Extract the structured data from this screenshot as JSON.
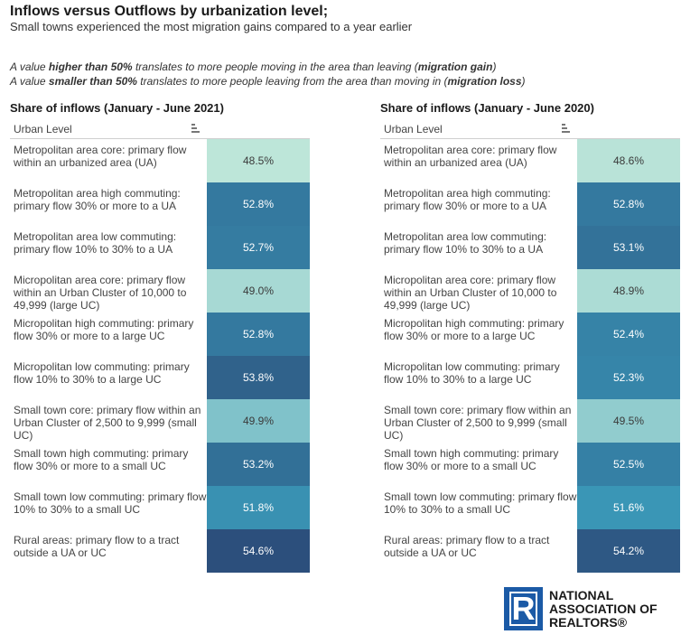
{
  "header": {
    "title": "Inflows versus Outflows by urbanization level;",
    "subtitle": "Small towns experienced the most migration gains compared to a year earlier"
  },
  "notes": {
    "line1": {
      "pre": "A value ",
      "bold": "higher than 50%",
      "mid": " translates to more people moving in the area than leaving (",
      "bold2": "migration gain",
      "post": ")"
    },
    "line2": {
      "pre": "A value ",
      "bold": "smaller than 50%",
      "mid": " translates to more people leaving from the area than moving in (",
      "bold2": "migration loss",
      "post": ")"
    }
  },
  "chart_data": {
    "type": "table",
    "column_header": "Urban Level",
    "categories": [
      "Metropolitan area core: primary flow within an urbanized area (UA)",
      "Metropolitan area high commuting: primary flow 30% or more to a UA",
      "Metropolitan area low commuting: primary flow 10% to 30% to a UA",
      "Micropolitan area core: primary flow within an Urban Cluster of 10,000 to 49,999 (large UC)",
      "Micropolitan high commuting: primary flow 30% or more to a large UC",
      "Micropolitan low commuting: primary flow 10% to 30% to a large UC",
      "Small town core: primary flow within an Urban Cluster of 2,500 to 9,999 (small UC)",
      "Small town high commuting: primary flow 30% or more to a small UC",
      "Small town low commuting: primary flow 10% to 30% to a small UC",
      "Rural areas: primary flow to a tract outside a UA or UC"
    ],
    "series": [
      {
        "name": "Share of inflows (January - June 2021)",
        "labels": [
          "48.5%",
          "52.8%",
          "52.7%",
          "49.0%",
          "52.8%",
          "53.8%",
          "49.9%",
          "53.2%",
          "51.8%",
          "54.6%"
        ],
        "values": [
          48.5,
          52.8,
          52.7,
          49.0,
          52.8,
          53.8,
          49.9,
          53.2,
          51.8,
          54.6
        ]
      },
      {
        "name": "Share of inflows (January - June 2020)",
        "labels": [
          "48.6%",
          "52.8%",
          "53.1%",
          "48.9%",
          "52.4%",
          "52.3%",
          "49.5%",
          "52.5%",
          "51.6%",
          "54.2%"
        ],
        "values": [
          48.6,
          52.8,
          53.1,
          48.9,
          52.4,
          52.3,
          49.5,
          52.5,
          51.6,
          54.2
        ]
      }
    ],
    "color_scale": {
      "low": "#bde6d9",
      "mid": "#3a98b8",
      "high": "#2c4f7c",
      "domain": [
        48.5,
        51.5,
        54.6
      ]
    }
  },
  "logo": {
    "mark": "R",
    "lines": [
      "NATIONAL",
      "ASSOCIATION OF",
      "REALTORS®"
    ]
  }
}
